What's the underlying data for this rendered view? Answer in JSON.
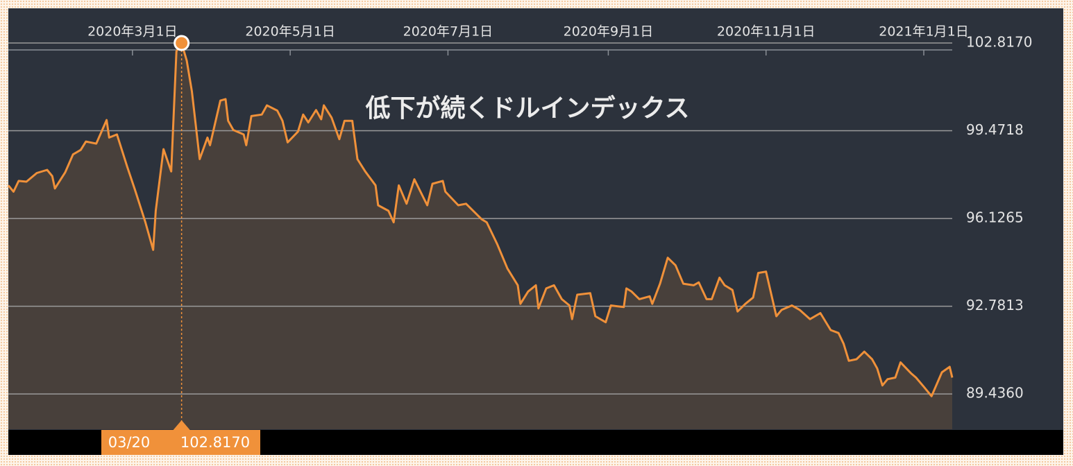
{
  "chart_data": {
    "type": "area",
    "title": "低下が続くドルインデックス",
    "x": [
      "2020-01-13",
      "2020-01-15",
      "2020-01-17",
      "2020-01-20",
      "2020-01-24",
      "2020-01-28",
      "2020-01-30",
      "2020-01-31",
      "2020-02-04",
      "2020-02-07",
      "2020-02-10",
      "2020-02-12",
      "2020-02-16",
      "2020-02-20",
      "2020-02-21",
      "2020-02-24",
      "2020-02-28",
      "2020-03-02",
      "2020-03-06",
      "2020-03-09",
      "2020-03-10",
      "2020-03-13",
      "2020-03-16",
      "2020-03-18",
      "2020-03-20",
      "2020-03-22",
      "2020-03-24",
      "2020-03-27",
      "2020-03-30",
      "2020-03-31",
      "2020-04-04",
      "2020-04-06",
      "2020-04-07",
      "2020-04-09",
      "2020-04-13",
      "2020-04-14",
      "2020-04-16",
      "2020-04-20",
      "2020-04-22",
      "2020-04-26",
      "2020-04-28",
      "2020-04-30",
      "2020-05-04",
      "2020-05-06",
      "2020-05-08",
      "2020-05-11",
      "2020-05-13",
      "2020-05-14",
      "2020-05-17",
      "2020-05-20",
      "2020-05-22",
      "2020-05-25",
      "2020-05-27",
      "2020-05-30",
      "2020-06-03",
      "2020-06-04",
      "2020-06-08",
      "2020-06-10",
      "2020-06-12",
      "2020-06-15",
      "2020-06-18",
      "2020-06-23",
      "2020-06-25",
      "2020-06-29",
      "2020-06-30",
      "2020-07-05",
      "2020-07-08",
      "2020-07-14",
      "2020-07-16",
      "2020-07-20",
      "2020-07-24",
      "2020-07-28",
      "2020-07-29",
      "2020-08-01",
      "2020-08-04",
      "2020-08-05",
      "2020-08-08",
      "2020-08-11",
      "2020-08-14",
      "2020-08-17",
      "2020-08-18",
      "2020-08-20",
      "2020-08-25",
      "2020-08-27",
      "2020-08-31",
      "2020-09-02",
      "2020-09-07",
      "2020-09-08",
      "2020-09-10",
      "2020-09-13",
      "2020-09-17",
      "2020-09-18",
      "2020-09-21",
      "2020-09-24",
      "2020-09-27",
      "2020-09-30",
      "2020-10-04",
      "2020-10-06",
      "2020-10-09",
      "2020-10-11",
      "2020-10-14",
      "2020-10-16",
      "2020-10-19",
      "2020-10-21",
      "2020-10-24",
      "2020-10-27",
      "2020-10-29",
      "2020-11-01",
      "2020-11-05",
      "2020-11-07",
      "2020-11-11",
      "2020-11-14",
      "2020-11-18",
      "2020-11-22",
      "2020-11-26",
      "2020-11-29",
      "2020-12-01",
      "2020-12-03",
      "2020-12-06",
      "2020-12-09",
      "2020-12-12",
      "2020-12-14",
      "2020-12-16",
      "2020-12-18",
      "2020-12-21",
      "2020-12-23",
      "2020-12-27",
      "2020-12-29",
      "2021-01-01",
      "2021-01-04",
      "2021-01-08",
      "2021-01-11",
      "2021-01-12"
    ],
    "values": [
      97.39,
      97.15,
      97.56,
      97.53,
      97.86,
      97.98,
      97.74,
      97.27,
      97.89,
      98.57,
      98.74,
      99.06,
      98.98,
      99.88,
      99.21,
      99.33,
      98.09,
      97.21,
      95.98,
      94.93,
      96.42,
      98.77,
      97.92,
      102.5,
      102.817,
      102.14,
      100.97,
      98.39,
      99.21,
      98.92,
      100.62,
      100.68,
      99.85,
      99.5,
      99.33,
      98.92,
      100.03,
      100.09,
      100.44,
      100.24,
      99.85,
      99.03,
      99.44,
      100.09,
      99.79,
      100.26,
      99.91,
      100.44,
      99.97,
      99.15,
      99.85,
      99.85,
      98.39,
      97.92,
      97.39,
      96.63,
      96.42,
      95.98,
      97.39,
      96.69,
      97.62,
      96.63,
      97.45,
      97.56,
      97.15,
      96.63,
      96.69,
      96.1,
      95.98,
      95.16,
      94.22,
      93.58,
      92.87,
      93.34,
      93.58,
      92.7,
      93.46,
      93.58,
      93.05,
      92.81,
      92.29,
      93.22,
      93.28,
      92.4,
      92.17,
      92.81,
      92.75,
      93.46,
      93.34,
      93.05,
      93.16,
      92.87,
      93.64,
      94.63,
      94.34,
      93.64,
      93.58,
      93.69,
      93.05,
      93.05,
      93.87,
      93.58,
      93.4,
      92.58,
      92.87,
      93.11,
      94.05,
      94.1,
      92.4,
      92.64,
      92.81,
      92.64,
      92.29,
      92.52,
      91.87,
      91.76,
      91.35,
      90.7,
      90.76,
      91.05,
      90.76,
      90.41,
      89.76,
      90.0,
      90.06,
      90.64,
      90.23,
      90.06,
      89.71,
      89.35,
      90.26,
      90.47,
      90.06
    ],
    "color": "#f0913a",
    "fill": "#48403b",
    "xlim": [
      "2020-01-13",
      "2021-01-12"
    ],
    "xticks": [
      {
        "value": "2020-03-01",
        "label": "2020年3月1日"
      },
      {
        "value": "2020-05-01",
        "label": "2020年5月1日"
      },
      {
        "value": "2020-07-01",
        "label": "2020年7月1日"
      },
      {
        "value": "2020-09-01",
        "label": "2020年9月1日"
      },
      {
        "value": "2020-11-01",
        "label": "2020年11月1日"
      },
      {
        "value": "2021-01-01",
        "label": "2021年1月1日"
      }
    ],
    "ylim": [
      88.09,
      104.14
    ],
    "yticks": [
      {
        "value": 102.817,
        "label": "102.8170"
      },
      99.4718,
      96.1265,
      92.7813,
      {
        "value": 89.436,
        "label": "89.4360"
      }
    ],
    "grid": true,
    "highlight": {
      "x": "2020-03-20",
      "x_label": "03/20",
      "value": 102.817,
      "value_label": "102.8170"
    }
  }
}
